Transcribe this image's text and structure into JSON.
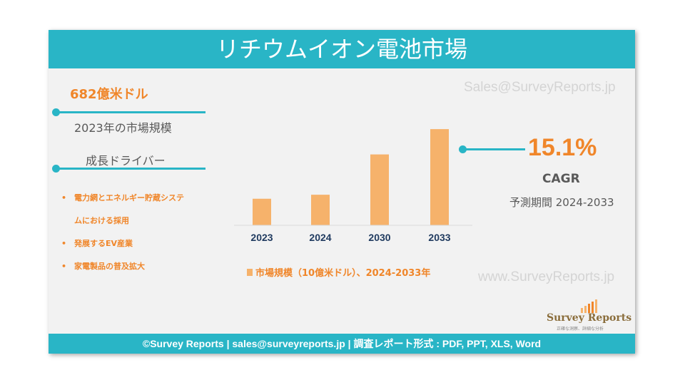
{
  "header": {
    "title": "リチウムイオン電池市場"
  },
  "left_panel": {
    "market_size": "682億米ドル",
    "market_size_caption": "2023年の市場規模",
    "drivers_title": "成長ドライバー",
    "drivers": [
      {
        "line1": "電力網とエネルギー貯蔵システ",
        "line2": "ムにおける採用"
      },
      {
        "line1": "発展するEV産業",
        "line2": ""
      },
      {
        "line1": "家電製品の普及拡大",
        "line2": ""
      }
    ]
  },
  "right_panel": {
    "cagr_value": "15.1%",
    "cagr_label": "CAGR",
    "forecast_period": "予測期間 2024-2033"
  },
  "watermarks": {
    "email": "Sales@SurveyReports.jp",
    "website": "www.SurveyReports.jp"
  },
  "logo": {
    "name": "Survey Reports",
    "tagline": "正確な洞察、詳細な分析"
  },
  "footer": {
    "text": "©Survey Reports | sales@surveyreports.jp |  調査レポート形式 : PDF, PPT, XLS, Word"
  },
  "colors": {
    "accent": "#29b5c6",
    "highlight": "#f0862a",
    "bar": "#f6b26b",
    "panel_bg": "#f2f2f2"
  },
  "chart_data": {
    "type": "bar",
    "categories": [
      "2023",
      "2024",
      "2030",
      "2033"
    ],
    "series": [
      {
        "name": "市場規模（10億米ドル）、2024-2033年",
        "values": [
          68.2,
          78.5,
          182,
          247
        ]
      }
    ],
    "legend": "市場規模（10億米ドル）、2024-2033年",
    "ylim": [
      0,
      260
    ],
    "grid": false,
    "legend_position": "bottom"
  }
}
